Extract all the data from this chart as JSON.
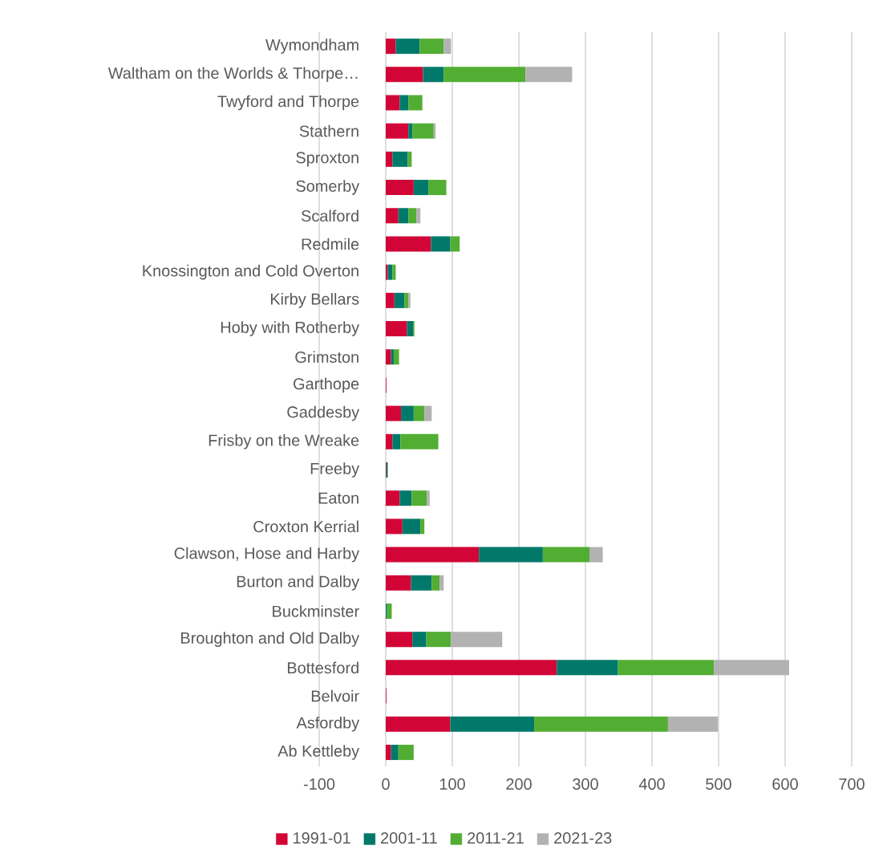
{
  "chart_data": {
    "type": "bar",
    "orientation": "horizontal",
    "stacked": true,
    "categories": [
      "Wymondham",
      "Waltham on the Worlds & Thorpe…",
      "Twyford and Thorpe",
      "Stathern",
      "Sproxton",
      "Somerby",
      "Scalford",
      "Redmile",
      "Knossington and Cold Overton",
      "Kirby Bellars",
      "Hoby with Rotherby",
      "Grimston",
      "Garthope",
      "Gaddesby",
      "Frisby on the Wreake",
      "Freeby",
      "Eaton",
      "Croxton Kerrial",
      "Clawson, Hose and Harby",
      "Burton and Dalby",
      "Buckminster",
      "Broughton and Old Dalby",
      "Bottesford",
      "Belvoir",
      "Asfordby",
      "Ab Kettleby"
    ],
    "series": [
      {
        "name": "1991-01",
        "color": "#d20537",
        "values": [
          15,
          56,
          21,
          34,
          10,
          42,
          19,
          68,
          3,
          13,
          32,
          8,
          1,
          23,
          10,
          1,
          21,
          25,
          140,
          38,
          null,
          40,
          257,
          1,
          97,
          8
        ]
      },
      {
        "name": "2001-11",
        "color": "#00796b",
        "values": [
          36,
          31,
          13,
          6,
          23,
          22,
          15,
          29,
          7,
          15,
          9,
          4,
          null,
          19,
          12,
          2,
          18,
          27,
          96,
          31,
          2,
          21,
          92,
          null,
          126,
          11
        ]
      },
      {
        "name": "2011-21",
        "color": "#52ae32",
        "values": [
          36,
          123,
          21,
          32,
          6,
          27,
          12,
          14,
          5,
          6,
          2,
          8,
          null,
          16,
          57,
          null,
          23,
          6,
          70,
          12,
          7,
          37,
          144,
          null,
          201,
          23
        ]
      },
      {
        "name": "2021-23",
        "color": "#b2b2b2",
        "values": [
          11,
          70,
          null,
          3,
          null,
          null,
          6,
          null,
          null,
          3,
          null,
          null,
          null,
          11,
          null,
          null,
          4,
          null,
          20,
          6,
          null,
          77,
          113,
          null,
          75,
          null
        ]
      }
    ],
    "xlim": [
      -100,
      700
    ],
    "xticks": [
      -100,
      0,
      100,
      200,
      300,
      400,
      500,
      600,
      700
    ],
    "grid": "x",
    "legend": "bottom"
  }
}
